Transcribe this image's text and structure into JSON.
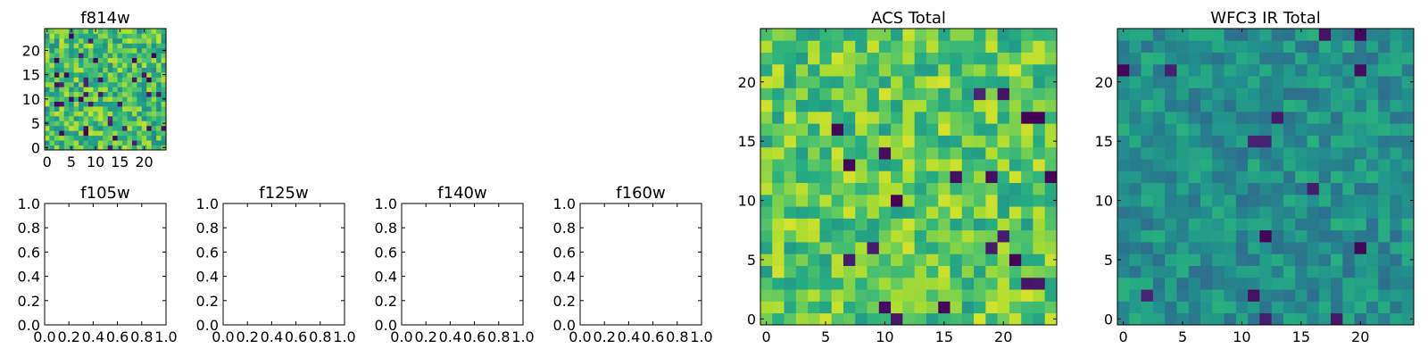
{
  "figure": {
    "background": "#ffffff"
  },
  "chart_data": [
    {
      "id": "p814",
      "type": "heatmap",
      "title": "f814w",
      "grid_size": 25,
      "xlim": [
        -0.5,
        24.5
      ],
      "ylim": [
        -0.5,
        24.5
      ],
      "xticks": [
        0,
        5,
        10,
        15,
        20
      ],
      "yticks": [
        0,
        5,
        10,
        15,
        20
      ],
      "colormap": "viridis",
      "seed": 814,
      "bias": 0.7,
      "spread": 0.22,
      "dark_rate": 0.05
    },
    {
      "id": "p105",
      "type": "empty",
      "title": "f105w",
      "xlim": [
        0,
        1
      ],
      "ylim": [
        0,
        1
      ],
      "xticks": [
        0.0,
        0.2,
        0.4,
        0.6,
        0.8,
        1.0
      ],
      "yticks": [
        0.0,
        0.2,
        0.4,
        0.6,
        0.8,
        1.0
      ]
    },
    {
      "id": "p125",
      "type": "empty",
      "title": "f125w",
      "xlim": [
        0,
        1
      ],
      "ylim": [
        0,
        1
      ],
      "xticks": [
        0.0,
        0.2,
        0.4,
        0.6,
        0.8,
        1.0
      ],
      "yticks": [
        0.0,
        0.2,
        0.4,
        0.6,
        0.8,
        1.0
      ]
    },
    {
      "id": "p140",
      "type": "empty",
      "title": "f140w",
      "xlim": [
        0,
        1
      ],
      "ylim": [
        0,
        1
      ],
      "xticks": [
        0.0,
        0.2,
        0.4,
        0.6,
        0.8,
        1.0
      ],
      "yticks": [
        0.0,
        0.2,
        0.4,
        0.6,
        0.8,
        1.0
      ]
    },
    {
      "id": "p160",
      "type": "empty",
      "title": "f160w",
      "xlim": [
        0,
        1
      ],
      "ylim": [
        0,
        1
      ],
      "xticks": [
        0.0,
        0.2,
        0.4,
        0.6,
        0.8,
        1.0
      ],
      "yticks": [
        0.0,
        0.2,
        0.4,
        0.6,
        0.8,
        1.0
      ]
    },
    {
      "id": "pacs",
      "type": "heatmap",
      "title": "ACS Total",
      "grid_size": 25,
      "xlim": [
        -0.5,
        24.5
      ],
      "ylim": [
        -0.5,
        24.5
      ],
      "xticks": [
        0,
        5,
        10,
        15,
        20
      ],
      "yticks": [
        0,
        5,
        10,
        15,
        20
      ],
      "colormap": "viridis",
      "seed": 1001,
      "bias": 0.74,
      "spread": 0.2,
      "dark_rate": 0.03
    },
    {
      "id": "pwfc3",
      "type": "heatmap",
      "title": "WFC3 IR Total",
      "grid_size": 25,
      "xlim": [
        -0.5,
        24.5
      ],
      "ylim": [
        -0.5,
        24.5
      ],
      "xticks": [
        0,
        5,
        10,
        15,
        20
      ],
      "yticks": [
        0,
        5,
        10,
        15,
        20
      ],
      "colormap": "viridis",
      "seed": 3003,
      "bias": 0.5,
      "spread": 0.14,
      "dark_rate": 0.03
    }
  ]
}
